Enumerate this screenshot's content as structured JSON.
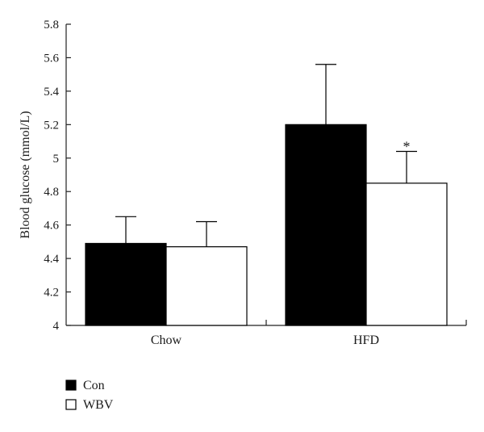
{
  "chart_data": {
    "type": "bar",
    "title": "",
    "xlabel": "",
    "ylabel": "Blood glucose (mmol/L)",
    "ylim": [
      4,
      5.8
    ],
    "yticks": [
      "4",
      "4.2",
      "4.4",
      "4.6",
      "4.8",
      "5",
      "5.2",
      "5.4",
      "5.6",
      "5.8"
    ],
    "categories": [
      "Chow",
      "HFD"
    ],
    "series": [
      {
        "name": "Con",
        "values": [
          4.49,
          5.2
        ],
        "errors": [
          0.16,
          0.36
        ],
        "color": "#000000"
      },
      {
        "name": "WBV",
        "values": [
          4.47,
          4.85
        ],
        "errors": [
          0.15,
          0.19
        ],
        "color": "#ffffff"
      }
    ],
    "annotations": [
      {
        "text": "*",
        "category": "HFD",
        "series": "WBV"
      }
    ],
    "grid": false,
    "legend_position": "bottom-left"
  }
}
